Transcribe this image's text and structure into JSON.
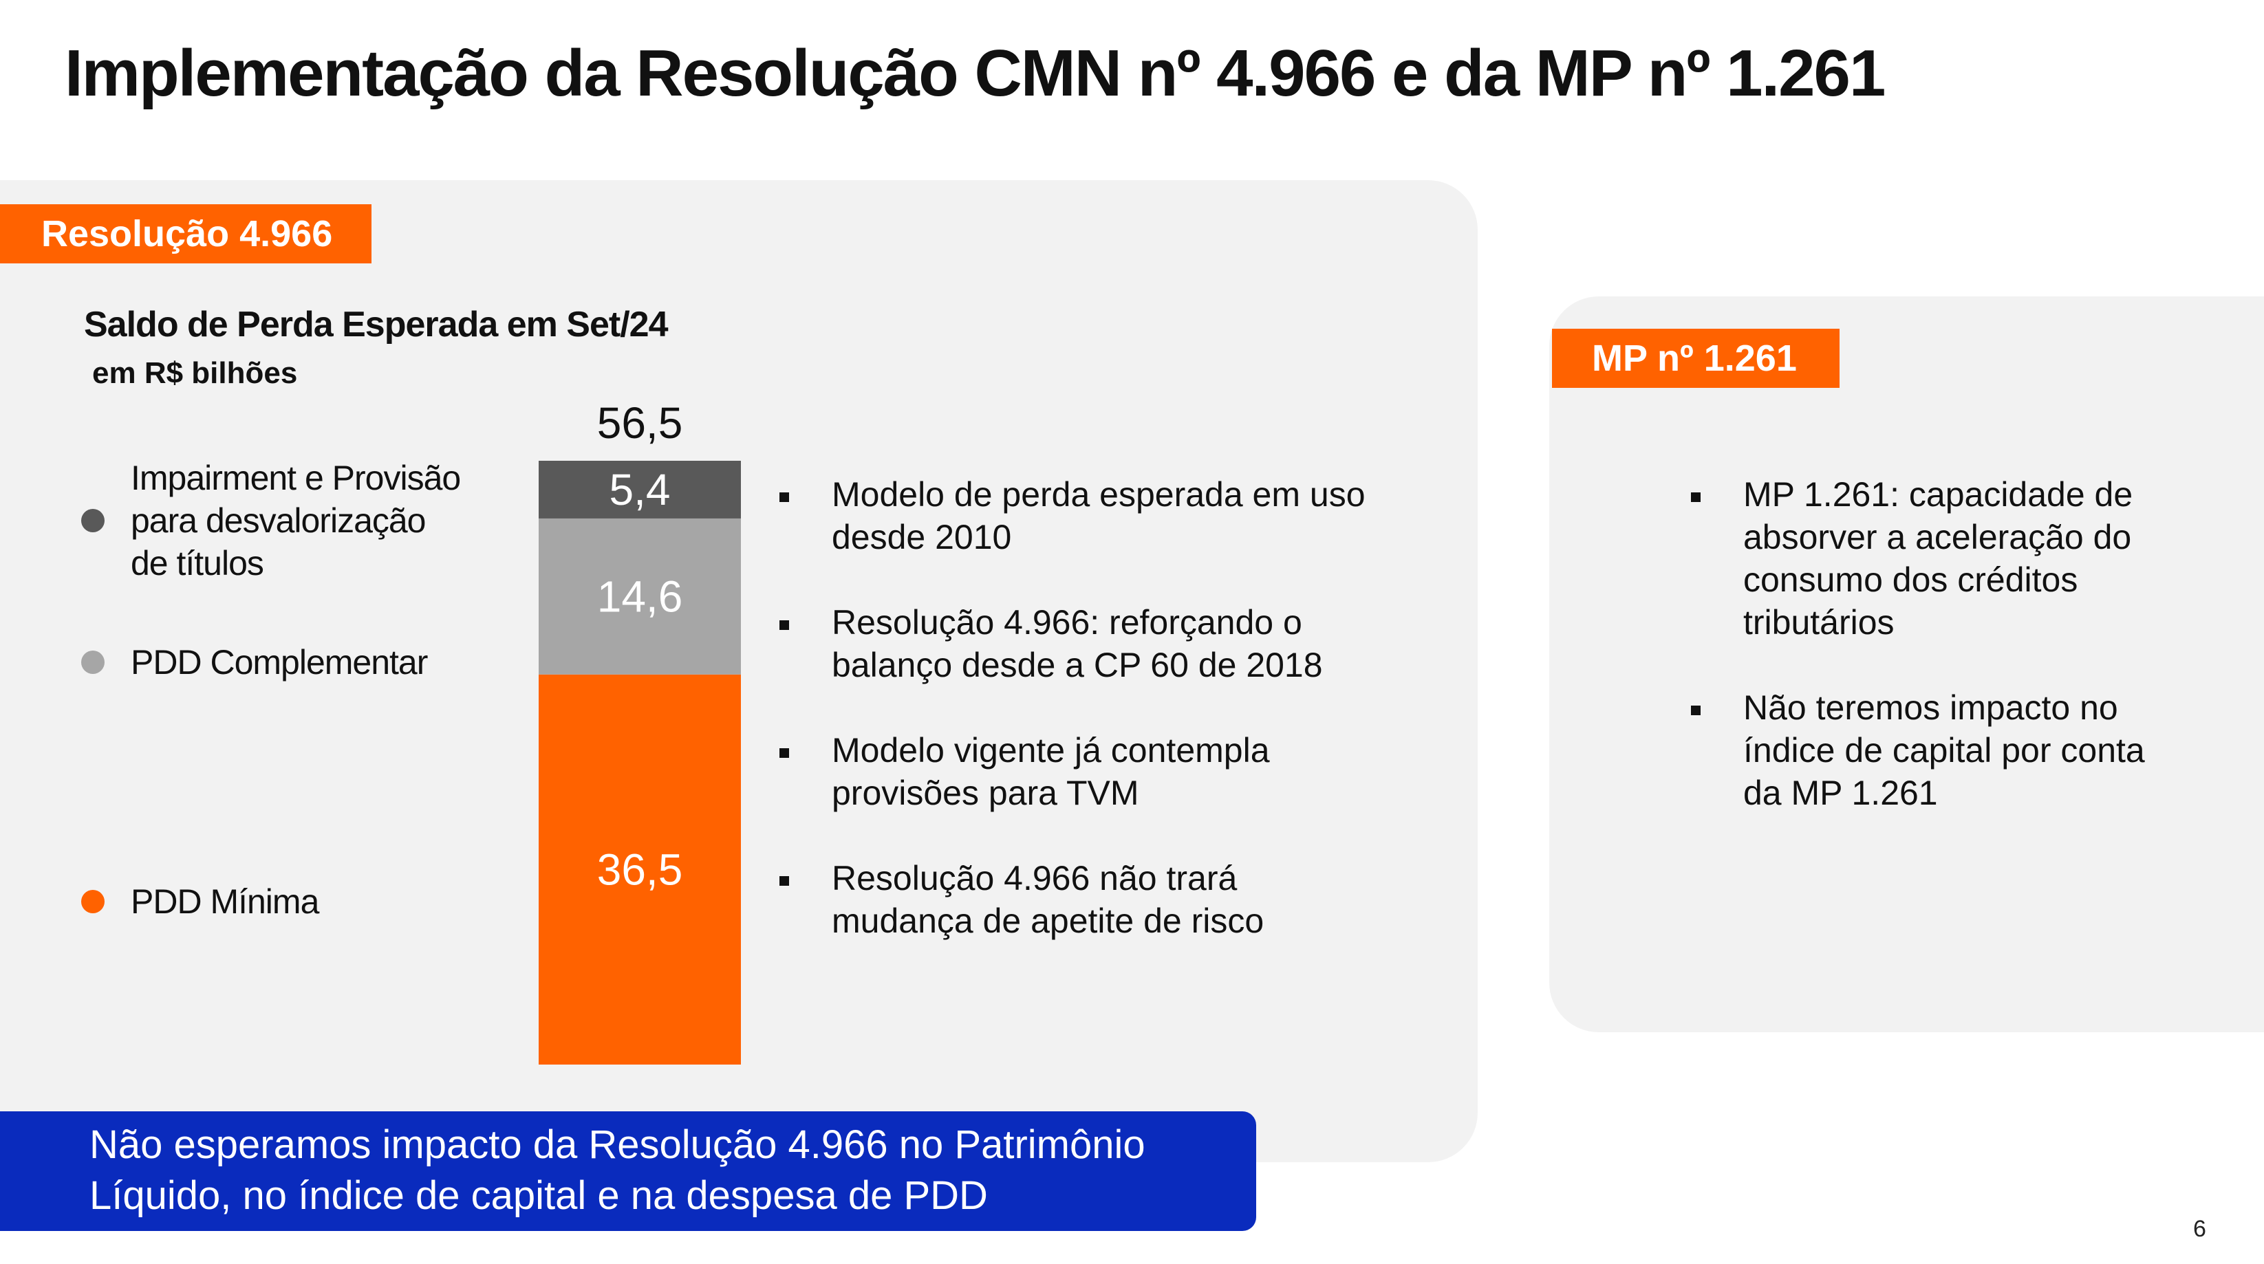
{
  "title": "Implementação da Resolução CMN  nº 4.966 e da MP nº 1.261",
  "left_section": {
    "tag": "Resolução 4.966",
    "bullets": [
      "Modelo de perda esperada em uso desde 2010",
      "Resolução 4.966: reforçando o balanço desde a CP 60 de 2018",
      "Modelo vigente já contempla provisões para TVM",
      "Resolução 4.966 não trará mudança de apetite de risco"
    ]
  },
  "right_section": {
    "tag": "MP nº 1.261",
    "bullets": [
      "MP 1.261: capacidade de absorver a aceleração do consumo dos créditos tributários",
      "Não teremos impacto no índice de capital por conta da MP 1.261"
    ]
  },
  "chart_data": {
    "type": "bar",
    "stacked": true,
    "title": "Saldo de Perda Esperada em Set/24",
    "subtitle": "em R$ bilhões",
    "total_label": "56,5",
    "total": 56.5,
    "series": [
      {
        "name": "PDD Mínima",
        "value": 36.5,
        "label": "36,5",
        "color": "#ff6200"
      },
      {
        "name": "PDD Complementar",
        "value": 14.6,
        "label": "14,6",
        "color": "#a6a6a6"
      },
      {
        "name": "Impairment e Provisão\npara desvalorização\nde títulos",
        "value": 5.4,
        "label": "5,4",
        "color": "#595959"
      }
    ]
  },
  "banner": "Não esperamos impacto da Resolução 4.966 no Patrimônio\nLíquido, no índice de capital e na despesa de PDD",
  "page_number": "6"
}
